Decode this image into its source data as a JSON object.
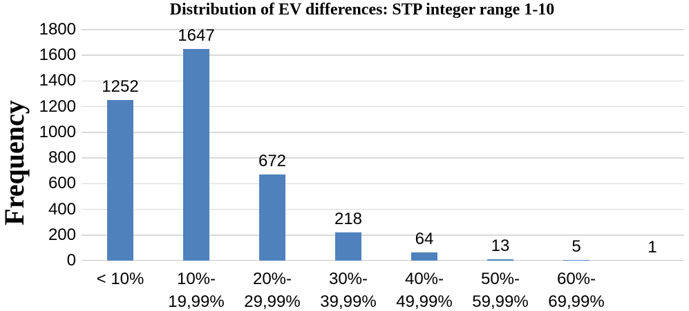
{
  "chart_data": {
    "type": "bar",
    "title": "Distribution of EV differences: STP integer range 1-10",
    "ylabel": "Frequency",
    "xlabel": "",
    "categories": [
      "< 10%",
      "10%-\n19,99%",
      "20%-\n29,99%",
      "30%-\n39,99%",
      "40%-\n49,99%",
      "50%-\n59,99%",
      "60%-\n69,99%",
      ""
    ],
    "values": [
      1252,
      1647,
      672,
      218,
      64,
      13,
      5,
      1
    ],
    "ylim": [
      0,
      1800
    ],
    "y_ticks": [
      0,
      200,
      400,
      600,
      800,
      1000,
      1200,
      1400,
      1600,
      1800
    ],
    "grid": true,
    "legend": false,
    "bar_color": "#4f81bd",
    "grid_color": "#d9d9d9",
    "axis_color": "#c6c6c6",
    "text_color": "#000000"
  }
}
